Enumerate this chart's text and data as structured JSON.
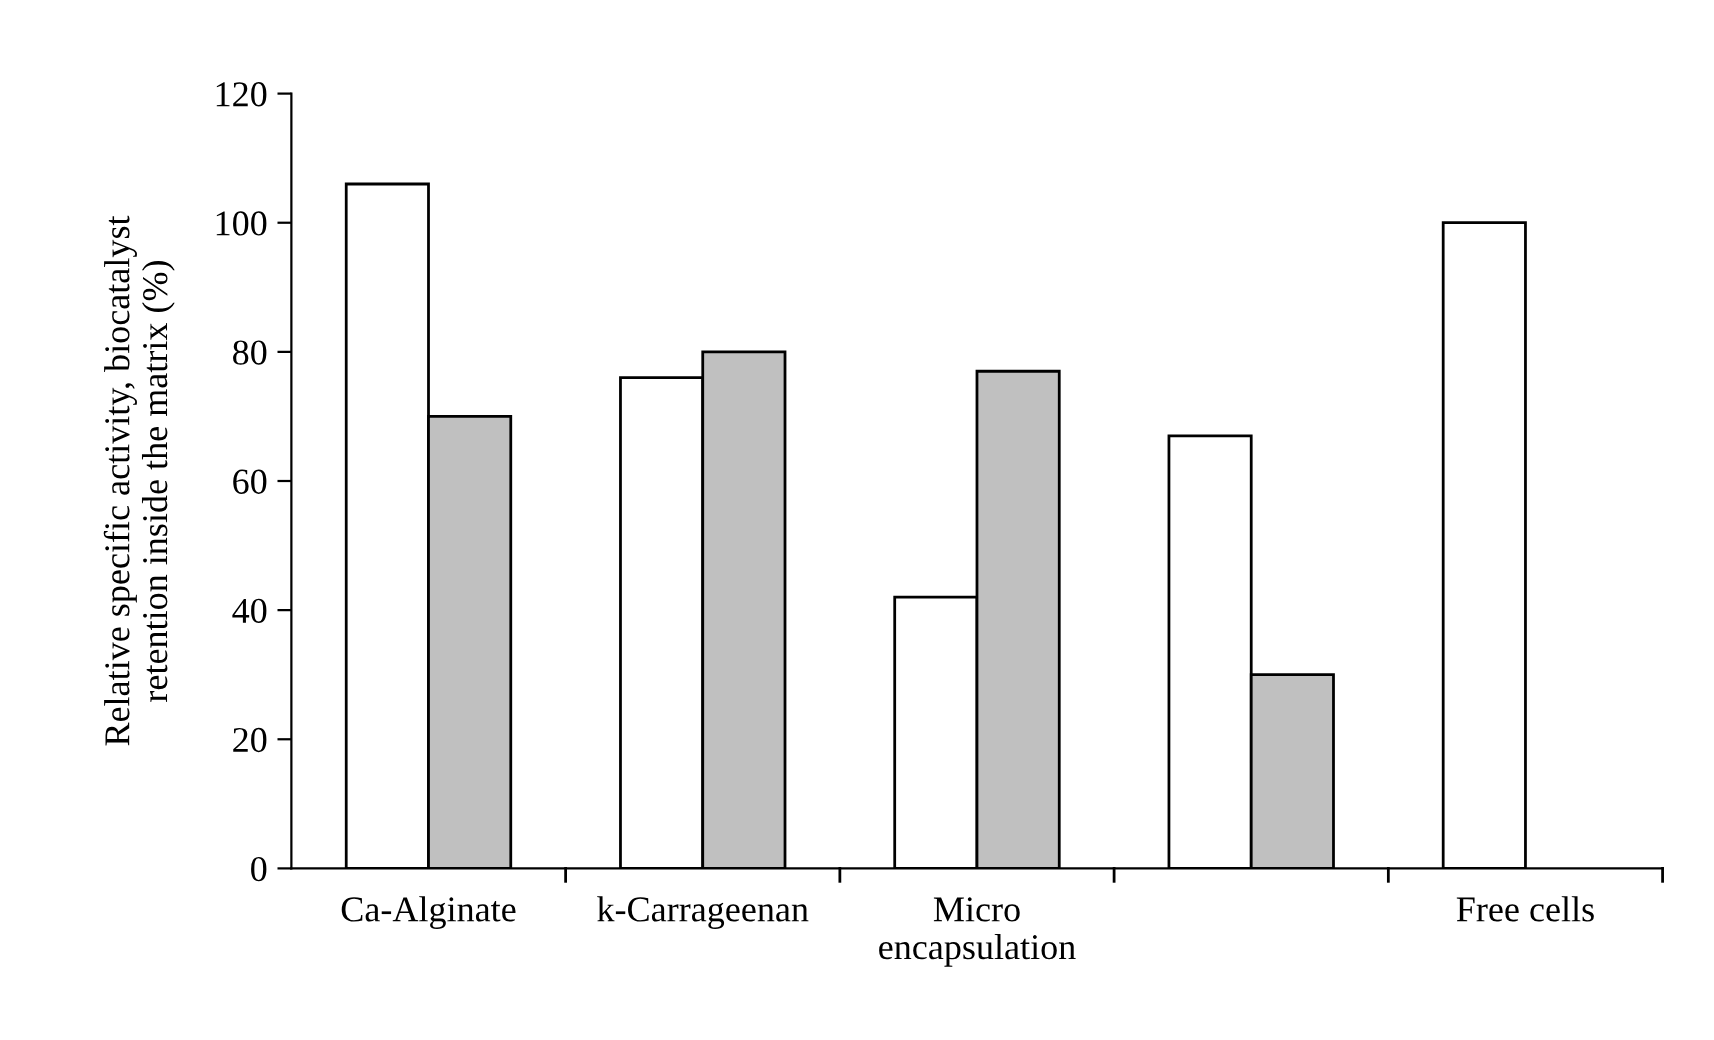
{
  "chart_data": {
    "type": "bar",
    "ylabel": "Relative specific activity, biocatalyst\nretention inside the matrix (%)",
    "categories": [
      "Ca-Alginate",
      "k-Carrageenan",
      "Micro\nencapsulation",
      null,
      "Free cells"
    ],
    "series": [
      {
        "color": "#ffffff",
        "values": [
          106,
          76,
          42,
          67,
          100
        ]
      },
      {
        "color": "#c0c0c0",
        "values": [
          70,
          80,
          77,
          30,
          null
        ]
      }
    ],
    "ylim": [
      0,
      120
    ],
    "yticks": [
      0,
      20,
      40,
      60,
      80,
      100,
      120
    ],
    "grid": false,
    "legend": false
  }
}
